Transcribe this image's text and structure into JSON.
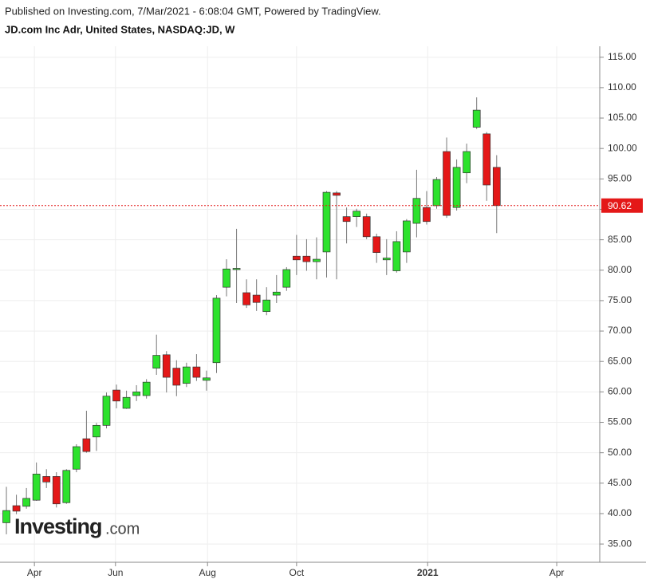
{
  "chart_data": {
    "type": "candlestick",
    "header": "Published on Investing.com, 7/Mar/2021 - 6:08:04 GMT, Powered by TradingView.",
    "title": "JD.com Inc Adr, United States, NASDAQ:JD, W",
    "watermark": {
      "brand": "Investing",
      "suffix": ".com"
    },
    "open": [
      38.5,
      41.3,
      41.2,
      42.2,
      46.1,
      46.1,
      41.8,
      47.3,
      52.3,
      52.6,
      54.5,
      60.3,
      57.3,
      59.4,
      59.4,
      63.9,
      66.1,
      63.9,
      61.4,
      64.1,
      61.9,
      64.8,
      77.2,
      80.1,
      76.3,
      75.9,
      73.2,
      75.9,
      77.2,
      82.3,
      82.3,
      81.4,
      83.0,
      92.7,
      88.8,
      88.8,
      88.8,
      85.5,
      81.7,
      79.9,
      83.0,
      87.7,
      90.3,
      90.6,
      99.5,
      90.3,
      96.0,
      103.5,
      102.4,
      96.9
    ],
    "high": [
      44.4,
      43.1,
      44.2,
      48.4,
      47.3,
      46.8,
      47.3,
      51.4,
      56.9,
      54.9,
      59.9,
      61.2,
      60.2,
      61.1,
      62.1,
      69.4,
      66.7,
      65.2,
      64.8,
      66.2,
      63.5,
      75.9,
      81.8,
      86.8,
      78.5,
      78.5,
      77.2,
      79.2,
      80.5,
      85.8,
      85.1,
      85.4,
      93.0,
      93.0,
      90.3,
      90.1,
      89.3,
      86.0,
      85.1,
      86.4,
      88.4,
      96.5,
      93.0,
      95.3,
      101.8,
      98.2,
      100.8,
      108.4,
      102.7,
      98.9
    ],
    "low": [
      36.6,
      39.9,
      40.8,
      42.1,
      44.2,
      41.0,
      41.6,
      46.8,
      50.0,
      50.3,
      54.0,
      57.3,
      57.2,
      58.5,
      58.9,
      62.8,
      59.9,
      59.3,
      60.8,
      61.8,
      60.2,
      63.1,
      75.7,
      74.6,
      73.8,
      73.3,
      72.6,
      74.6,
      76.6,
      79.2,
      79.9,
      78.5,
      78.8,
      78.5,
      84.4,
      87.1,
      85.1,
      81.2,
      79.2,
      79.6,
      81.2,
      85.4,
      87.5,
      90.1,
      88.6,
      89.8,
      94.3,
      103.2,
      91.4,
      86.1
    ],
    "close": [
      40.5,
      40.4,
      42.5,
      46.5,
      45.2,
      41.6,
      47.1,
      51.0,
      50.2,
      54.5,
      59.3,
      58.5,
      59.1,
      60.0,
      61.6,
      66.0,
      62.4,
      61.1,
      64.1,
      62.4,
      62.3,
      75.4,
      80.2,
      80.3,
      74.3,
      74.7,
      75.1,
      76.4,
      80.1,
      81.7,
      81.4,
      81.8,
      92.8,
      92.3,
      88.0,
      89.7,
      85.5,
      82.9,
      82.0,
      84.7,
      88.1,
      91.8,
      88.0,
      94.9,
      89.0,
      96.9,
      99.5,
      106.3,
      94.0,
      90.62
    ],
    "up_color": "#2de22d",
    "down_color": "#e41818",
    "last_price": 90.62,
    "last_price_color": "#e41818",
    "xlim": [
      -0.64,
      59.3
    ],
    "xticks": [
      {
        "value": 2.8,
        "label": "Apr"
      },
      {
        "value": 10.9,
        "label": "Jun"
      },
      {
        "value": 20.1,
        "label": "Aug"
      },
      {
        "value": 29.0,
        "label": "Oct"
      },
      {
        "value": 42.1,
        "label": "2021"
      },
      {
        "value": 55.0,
        "label": "Apr"
      }
    ],
    "ylim": [
      32.0,
      116.8
    ],
    "yticks": [
      {
        "value": 35,
        "label": "35.00"
      },
      {
        "value": 40,
        "label": "40.00"
      },
      {
        "value": 45,
        "label": "45.00"
      },
      {
        "value": 50,
        "label": "50.00"
      },
      {
        "value": 55,
        "label": "55.00"
      },
      {
        "value": 60,
        "label": "60.00"
      },
      {
        "value": 65,
        "label": "65.00"
      },
      {
        "value": 70,
        "label": "70.00"
      },
      {
        "value": 75,
        "label": "75.00"
      },
      {
        "value": 80,
        "label": "80.00"
      },
      {
        "value": 85,
        "label": "85.00"
      },
      {
        "value": 90,
        "label": "90.00"
      },
      {
        "value": 95,
        "label": "95.00"
      },
      {
        "value": 100,
        "label": "100.00"
      },
      {
        "value": 105,
        "label": "105.00"
      },
      {
        "value": 110,
        "label": "110.00"
      },
      {
        "value": 115,
        "label": "115.00"
      }
    ],
    "grid": true
  }
}
